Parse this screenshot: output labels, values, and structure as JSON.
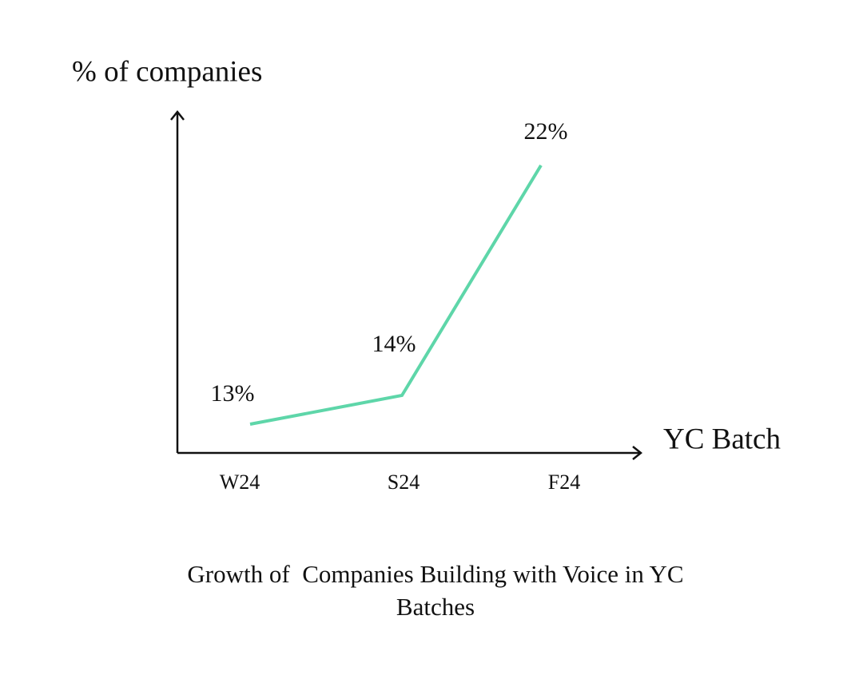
{
  "chart_data": {
    "type": "line",
    "title": "Growth of  Companies Building with Voice in YC Batches",
    "y_label": "% of companies",
    "x_label": "YC Batch",
    "categories": [
      "W24",
      "S24",
      "F24"
    ],
    "values": [
      13,
      14,
      22
    ],
    "value_labels": [
      "13%",
      "14%",
      "22%"
    ],
    "color": "#5ed6a9",
    "ylim": [
      12,
      23
    ]
  }
}
